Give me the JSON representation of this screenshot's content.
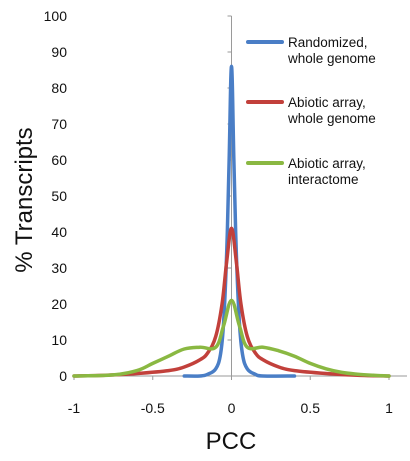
{
  "chart_data": {
    "type": "line",
    "title": "",
    "xlabel": "PCC",
    "ylabel": "% Transcripts",
    "xlim": [
      -1,
      1
    ],
    "ylim": [
      0,
      100
    ],
    "x_ticks": [
      "-1",
      "-0.5",
      "0",
      "0.5",
      "1"
    ],
    "y_ticks": [
      "0",
      "10",
      "20",
      "30",
      "40",
      "50",
      "60",
      "70",
      "80",
      "90",
      "100"
    ],
    "grid": false,
    "legend_position": "top-right",
    "series": [
      {
        "name_lines": [
          "Randomized,",
          "whole genome"
        ],
        "color": "#4a7ec6",
        "points": [
          [
            -0.3,
            0
          ],
          [
            -0.2,
            0
          ],
          [
            -0.15,
            0.5
          ],
          [
            -0.1,
            2
          ],
          [
            -0.07,
            6
          ],
          [
            -0.05,
            15
          ],
          [
            -0.03,
            35
          ],
          [
            -0.015,
            60
          ],
          [
            0,
            86
          ],
          [
            0.015,
            60
          ],
          [
            0.03,
            35
          ],
          [
            0.05,
            15
          ],
          [
            0.07,
            6
          ],
          [
            0.1,
            2
          ],
          [
            0.15,
            0.5
          ],
          [
            0.2,
            0
          ],
          [
            0.4,
            0
          ]
        ]
      },
      {
        "name_lines": [
          "Abiotic array,",
          "whole genome"
        ],
        "color": "#c2403b",
        "points": [
          [
            -1,
            0
          ],
          [
            -0.8,
            0.2
          ],
          [
            -0.6,
            0.7
          ],
          [
            -0.4,
            1.5
          ],
          [
            -0.3,
            2.5
          ],
          [
            -0.2,
            4.5
          ],
          [
            -0.15,
            6.5
          ],
          [
            -0.1,
            11
          ],
          [
            -0.06,
            20
          ],
          [
            -0.03,
            32
          ],
          [
            0,
            41
          ],
          [
            0.03,
            32
          ],
          [
            0.06,
            20
          ],
          [
            0.1,
            11
          ],
          [
            0.15,
            6.5
          ],
          [
            0.2,
            4.5
          ],
          [
            0.3,
            2.5
          ],
          [
            0.4,
            1.5
          ],
          [
            0.6,
            0.7
          ],
          [
            0.8,
            0.2
          ],
          [
            1,
            0
          ]
        ]
      },
      {
        "name_lines": [
          "Abiotic array,",
          "interactome"
        ],
        "color": "#8ab842",
        "points": [
          [
            -1,
            0
          ],
          [
            -0.75,
            0.3
          ],
          [
            -0.6,
            1.5
          ],
          [
            -0.5,
            3.5
          ],
          [
            -0.4,
            5.5
          ],
          [
            -0.3,
            7.5
          ],
          [
            -0.2,
            8
          ],
          [
            -0.1,
            8
          ],
          [
            -0.05,
            14
          ],
          [
            0,
            21
          ],
          [
            0.05,
            14
          ],
          [
            0.1,
            8
          ],
          [
            0.2,
            8
          ],
          [
            0.3,
            7
          ],
          [
            0.4,
            5.5
          ],
          [
            0.5,
            3.5
          ],
          [
            0.6,
            2
          ],
          [
            0.7,
            1
          ],
          [
            0.8,
            0.5
          ],
          [
            0.9,
            0.2
          ],
          [
            1,
            0
          ]
        ]
      }
    ]
  }
}
